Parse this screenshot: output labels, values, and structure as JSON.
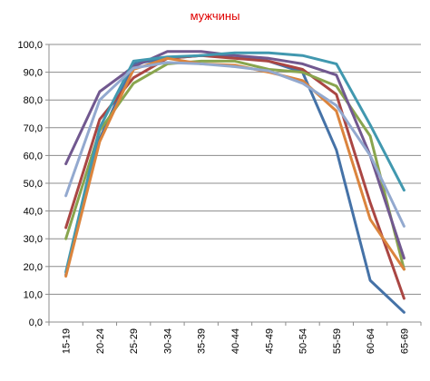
{
  "chart_data": {
    "type": "line",
    "title": "мужчины",
    "xlabel": "",
    "ylabel": "",
    "categories": [
      "15-19",
      "20-24",
      "25-29",
      "30-34",
      "35-39",
      "40-44",
      "45-49",
      "50-54",
      "55-59",
      "60-64",
      "65-69"
    ],
    "y_ticks": [
      "0,0",
      "10,0",
      "20,0",
      "30,0",
      "40,0",
      "50,0",
      "60,0",
      "70,0",
      "80,0",
      "90,0",
      "100,0"
    ],
    "ylim": [
      0,
      100
    ],
    "grid": true,
    "legend": "none",
    "series": [
      {
        "color": "#4572a7",
        "values": [
          17,
          66,
          93,
          95,
          96,
          96,
          94,
          90,
          62,
          15,
          3.5
        ]
      },
      {
        "color": "#aa4643",
        "values": [
          34,
          73,
          88,
          95,
          96,
          95,
          94,
          91,
          82,
          43,
          8.5
        ]
      },
      {
        "color": "#89a54e",
        "values": [
          30,
          69,
          86,
          93,
          94,
          94,
          91,
          90,
          85,
          67,
          19
        ]
      },
      {
        "color": "#71588f",
        "values": [
          57,
          83,
          92,
          97.5,
          97.5,
          96,
          95,
          93,
          89,
          60,
          23
        ]
      },
      {
        "color": "#4198af",
        "values": [
          18,
          70,
          94,
          95.5,
          96,
          97,
          97,
          96,
          93,
          71,
          47.5
        ]
      },
      {
        "color": "#db843d",
        "values": [
          16.5,
          65,
          91,
          95,
          93,
          92.5,
          90,
          87,
          76,
          37,
          19
        ]
      },
      {
        "color": "#93a9cf",
        "values": [
          45.5,
          80,
          91.5,
          93.5,
          93,
          92,
          90.5,
          86,
          78,
          60,
          34.5
        ]
      }
    ]
  }
}
